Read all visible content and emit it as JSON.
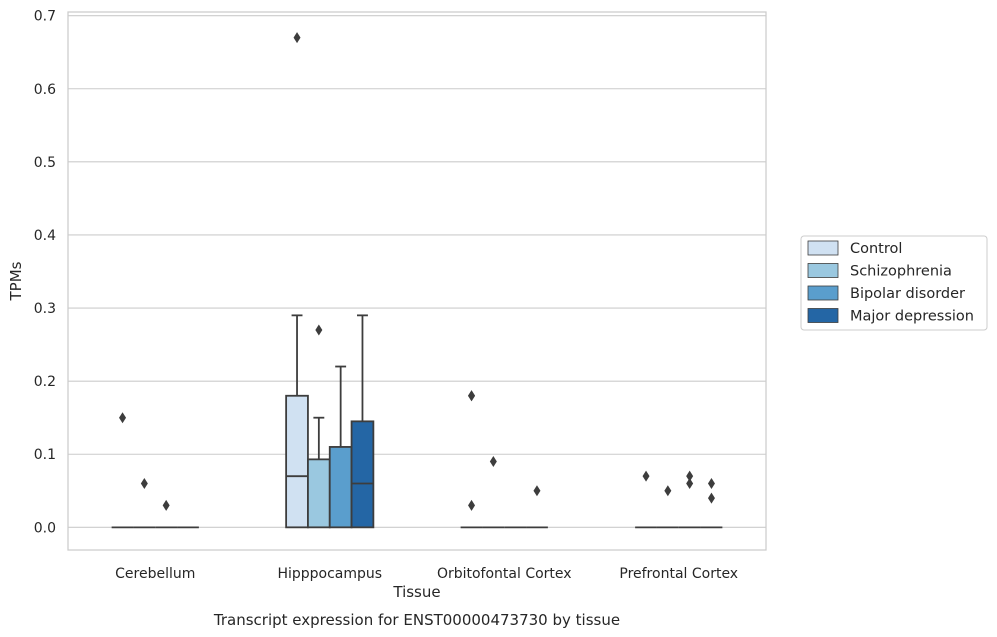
{
  "chart_data": {
    "type": "box",
    "xlabel": "Tissue",
    "ylabel": "TPMs",
    "caption": "Transcript expression for ENST00000473730 by tissue",
    "ylim": [
      -0.031,
      0.705
    ],
    "yticks": [
      0.0,
      0.1,
      0.2,
      0.3,
      0.4,
      0.5,
      0.6,
      0.7
    ],
    "ytick_labels": [
      "0.0",
      "0.1",
      "0.2",
      "0.3",
      "0.4",
      "0.5",
      "0.6",
      "0.7"
    ],
    "grid": "horizontal",
    "legend_position": "right",
    "categories": [
      "Cerebellum",
      "Hipppocampus",
      "Orbitofontal Cortex",
      "Prefrontal Cortex"
    ],
    "series": [
      {
        "name": "Control",
        "color": "#d0e1f2",
        "boxes": [
          {
            "q1": 0,
            "median": 0,
            "q3": 0,
            "whislo": 0,
            "whishi": 0,
            "fliers": [
              0.15
            ]
          },
          {
            "q1": 0,
            "median": 0.07,
            "q3": 0.18,
            "whislo": 0,
            "whishi": 0.29,
            "fliers": [
              0.67
            ]
          },
          {
            "q1": 0,
            "median": 0,
            "q3": 0,
            "whislo": 0,
            "whishi": 0,
            "fliers": [
              0.18,
              0.18,
              0.03
            ]
          },
          {
            "q1": 0,
            "median": 0,
            "q3": 0,
            "whislo": 0,
            "whishi": 0,
            "fliers": [
              0.07
            ]
          }
        ]
      },
      {
        "name": "Schizophrenia",
        "color": "#9ac8e0",
        "boxes": [
          {
            "q1": 0,
            "median": 0,
            "q3": 0,
            "whislo": 0,
            "whishi": 0,
            "fliers": [
              0.06
            ]
          },
          {
            "q1": 0,
            "median": 0.093,
            "q3": 0.093,
            "whislo": 0,
            "whishi": 0.15,
            "fliers": [
              0.27
            ]
          },
          {
            "q1": 0,
            "median": 0,
            "q3": 0,
            "whislo": 0,
            "whishi": 0,
            "fliers": [
              0.09
            ]
          },
          {
            "q1": 0,
            "median": 0,
            "q3": 0,
            "whislo": 0,
            "whishi": 0,
            "fliers": [
              0.05
            ]
          }
        ]
      },
      {
        "name": "Bipolar disorder",
        "color": "#5a9ecd",
        "boxes": [
          {
            "q1": 0,
            "median": 0,
            "q3": 0,
            "whislo": 0,
            "whishi": 0,
            "fliers": [
              0.03
            ]
          },
          {
            "q1": 0,
            "median": 0.11,
            "q3": 0.11,
            "whislo": 0,
            "whishi": 0.22,
            "fliers": []
          },
          {
            "q1": 0,
            "median": 0,
            "q3": 0,
            "whislo": 0,
            "whishi": 0,
            "fliers": []
          },
          {
            "q1": 0,
            "median": 0,
            "q3": 0,
            "whislo": 0,
            "whishi": 0,
            "fliers": [
              0.07,
              0.06
            ]
          }
        ]
      },
      {
        "name": "Major depression",
        "color": "#2466a5",
        "boxes": [
          {
            "q1": 0,
            "median": 0,
            "q3": 0,
            "whislo": 0,
            "whishi": 0,
            "fliers": []
          },
          {
            "q1": 0,
            "median": 0.06,
            "q3": 0.145,
            "whislo": 0,
            "whishi": 0.29,
            "fliers": []
          },
          {
            "q1": 0,
            "median": 0,
            "q3": 0,
            "whislo": 0,
            "whishi": 0,
            "fliers": [
              0.05
            ]
          },
          {
            "q1": 0,
            "median": 0,
            "q3": 0,
            "whislo": 0,
            "whishi": 0,
            "fliers": [
              0.06,
              0.04
            ]
          }
        ]
      }
    ]
  }
}
